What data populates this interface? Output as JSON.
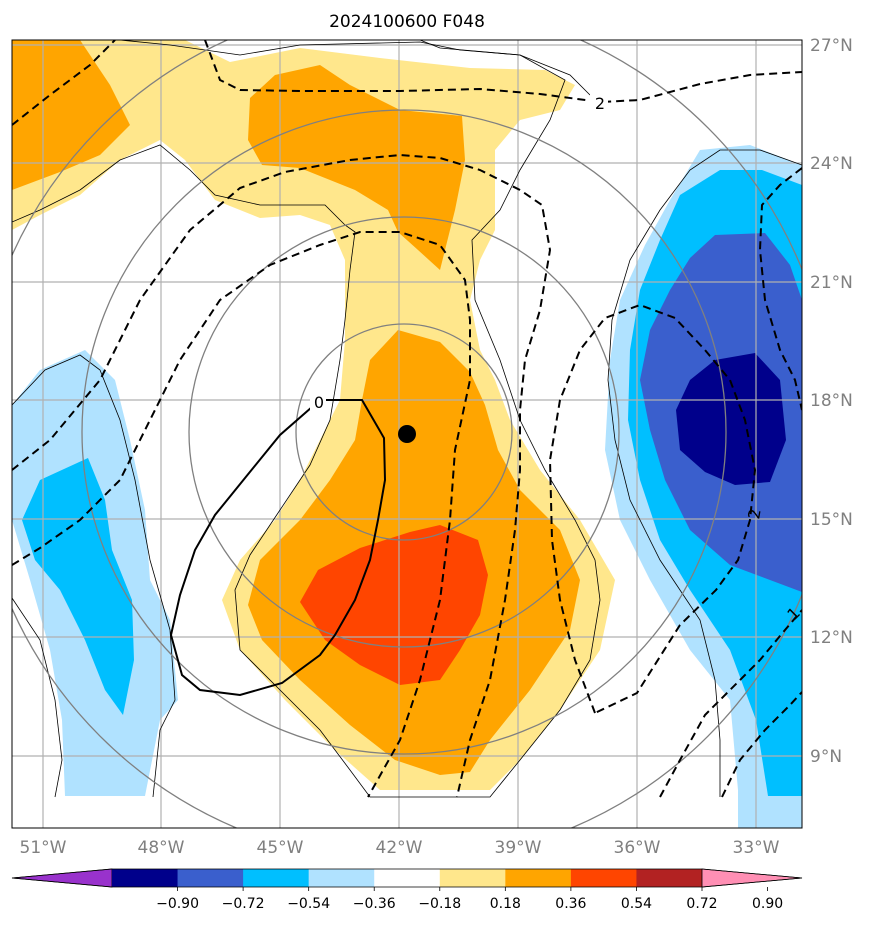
{
  "title": "2024100600 F048",
  "map": {
    "lon_range": [
      -51.8,
      -31.8
    ],
    "lat_range": [
      7.5,
      27.2
    ],
    "lon_ticks": [
      {
        "value": -51,
        "label": "51°W"
      },
      {
        "value": -48,
        "label": "48°W"
      },
      {
        "value": -45,
        "label": "45°W"
      },
      {
        "value": -42,
        "label": "42°W"
      },
      {
        "value": -39,
        "label": "39°W"
      },
      {
        "value": -36,
        "label": "36°W"
      },
      {
        "value": -33,
        "label": "33°W"
      }
    ],
    "lat_ticks": [
      {
        "value": 27,
        "label": "27°N"
      },
      {
        "value": 24,
        "label": "24°N"
      },
      {
        "value": 21,
        "label": "21°N"
      },
      {
        "value": 18,
        "label": "18°N"
      },
      {
        "value": 15,
        "label": "15°N"
      },
      {
        "value": 12,
        "label": "12°N"
      },
      {
        "value": 9,
        "label": "9°N"
      }
    ],
    "storm_center": {
      "lon": -41.8,
      "lat": 17.2
    },
    "contour_labels": [
      {
        "text": "0",
        "lon": -44.0,
        "lat": 18.0
      },
      {
        "text": "2",
        "lon": -37.1,
        "lat": 25.5
      },
      {
        "text": "2",
        "lon": -33.0,
        "lat": 15.2
      },
      {
        "text": "1",
        "lon": -32.0,
        "lat": 12.6
      }
    ]
  },
  "colorbar": {
    "colors": [
      "#9932cc",
      "#00008b",
      "#3a5fcd",
      "#00bfff",
      "#b0e2ff",
      "#ffffff",
      "#ffe78c",
      "#ffa500",
      "#ff4500",
      "#b22222",
      "#ff8fb4"
    ],
    "tick_labels": [
      "−0.90",
      "−0.72",
      "−0.54",
      "−0.36",
      "−0.18",
      "0.18",
      "0.36",
      "0.54",
      "0.72",
      "0.90"
    ]
  }
}
